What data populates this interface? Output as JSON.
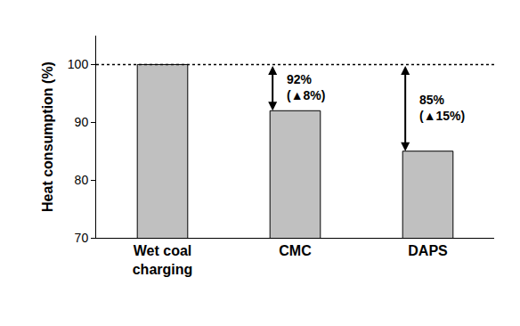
{
  "chart_data": {
    "type": "bar",
    "categories": [
      "Wet coal charging",
      "CMC",
      "DAPS"
    ],
    "values": [
      100,
      92,
      85
    ],
    "color": "#c0c0c0",
    "ylabel": "Heat consumption (%)",
    "ylim": [
      70,
      105
    ],
    "yticks": [
      70,
      80,
      90,
      100
    ],
    "grid": false,
    "reference_line": 100,
    "annotations": [
      {
        "category": "CMC",
        "lines": [
          "92%",
          "(▲8%)"
        ]
      },
      {
        "category": "DAPS",
        "lines": [
          "85%",
          "(▲15%)"
        ]
      }
    ]
  }
}
